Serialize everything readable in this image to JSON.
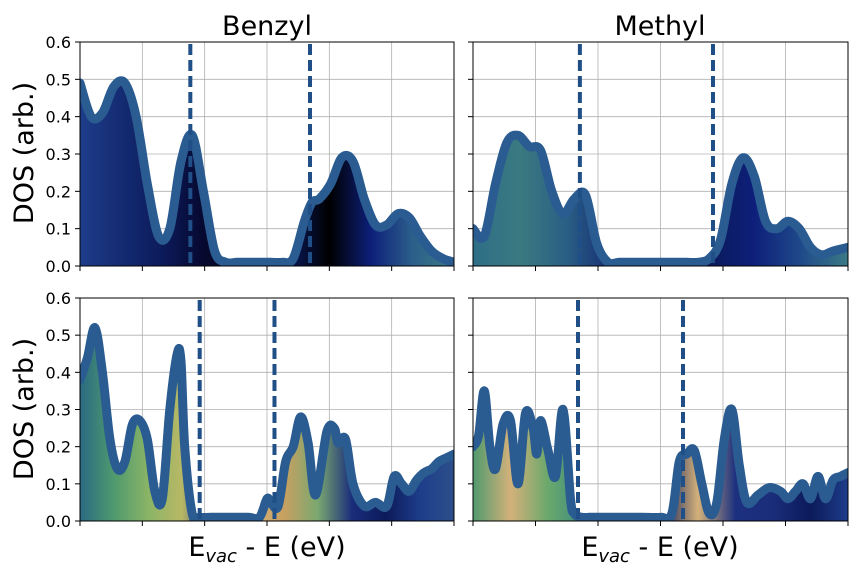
{
  "chart_data": [
    {
      "type": "area",
      "title": "Benzyl",
      "ylabel": "DOS (arb.)",
      "xlabel": "",
      "ylim": [
        0,
        0.6
      ],
      "yticks": [
        "0.0",
        "0.1",
        "0.2",
        "0.3",
        "0.4",
        "0.5",
        "0.6"
      ],
      "x": [
        0,
        0.03,
        0.06,
        0.09,
        0.12,
        0.15,
        0.18,
        0.21,
        0.24,
        0.27,
        0.3,
        0.33,
        0.36,
        0.39,
        0.42,
        0.45,
        0.48,
        0.51,
        0.54,
        0.57,
        0.6,
        0.62,
        0.64,
        0.67,
        0.7,
        0.73,
        0.76,
        0.79,
        0.82,
        0.85,
        0.88,
        0.91,
        0.94,
        0.97,
        1.0
      ],
      "y": [
        0.49,
        0.4,
        0.41,
        0.48,
        0.49,
        0.4,
        0.22,
        0.08,
        0.1,
        0.28,
        0.35,
        0.2,
        0.04,
        0.01,
        0.01,
        0.01,
        0.01,
        0.01,
        0.01,
        0.02,
        0.12,
        0.17,
        0.18,
        0.22,
        0.29,
        0.28,
        0.18,
        0.11,
        0.11,
        0.14,
        0.13,
        0.08,
        0.04,
        0.02,
        0.01
      ],
      "vlines": [
        0.295,
        0.615
      ],
      "fill_colors": [
        "#1e3d8a",
        "#142b72",
        "#0c1a5a",
        "#06082e",
        "#05061c",
        "#0a1a5e",
        "#000000",
        "#0d1f7a",
        "#2c5f8a",
        "#3a7a85"
      ]
    },
    {
      "type": "area",
      "title": "Methyl",
      "ylabel": "",
      "xlabel": "",
      "ylim": [
        0,
        0.6
      ],
      "x": [
        0,
        0.03,
        0.06,
        0.09,
        0.12,
        0.15,
        0.18,
        0.21,
        0.24,
        0.27,
        0.3,
        0.33,
        0.36,
        0.39,
        0.42,
        0.45,
        0.48,
        0.51,
        0.54,
        0.57,
        0.6,
        0.63,
        0.66,
        0.69,
        0.72,
        0.75,
        0.78,
        0.81,
        0.84,
        0.87,
        0.9,
        0.93,
        0.96,
        1.0
      ],
      "y": [
        0.1,
        0.08,
        0.22,
        0.33,
        0.35,
        0.32,
        0.31,
        0.2,
        0.14,
        0.18,
        0.19,
        0.06,
        0.01,
        0.01,
        0.01,
        0.01,
        0.01,
        0.01,
        0.01,
        0.01,
        0.01,
        0.02,
        0.07,
        0.22,
        0.29,
        0.24,
        0.12,
        0.1,
        0.12,
        0.1,
        0.05,
        0.03,
        0.04,
        0.05
      ],
      "vlines": [
        0.285,
        0.64
      ],
      "fill_colors": [
        "#2e6e88",
        "#3a7a80",
        "#2a5f85",
        "#142b72",
        "#05061c",
        "#0c1a5a",
        "#0d1f7a",
        "#1f4a8a",
        "#3a7a85"
      ]
    },
    {
      "type": "area",
      "title": "",
      "ylabel": "DOS (arb.)",
      "xlabel": "E_vac - E (eV)",
      "ylim": [
        0,
        0.6
      ],
      "yticks": [
        "0.0",
        "0.1",
        "0.2",
        "0.3",
        "0.4",
        "0.5",
        "0.6"
      ],
      "x": [
        0,
        0.02,
        0.04,
        0.06,
        0.08,
        0.1,
        0.12,
        0.14,
        0.16,
        0.18,
        0.2,
        0.22,
        0.24,
        0.26,
        0.27,
        0.28,
        0.3,
        0.32,
        0.35,
        0.4,
        0.45,
        0.48,
        0.5,
        0.51,
        0.53,
        0.55,
        0.57,
        0.59,
        0.61,
        0.63,
        0.66,
        0.68,
        0.69,
        0.71,
        0.73,
        0.76,
        0.79,
        0.82,
        0.84,
        0.86,
        0.88,
        0.9,
        0.92,
        0.94,
        0.96,
        0.98,
        1.0
      ],
      "y": [
        0.38,
        0.44,
        0.52,
        0.4,
        0.22,
        0.14,
        0.16,
        0.26,
        0.27,
        0.22,
        0.08,
        0.06,
        0.3,
        0.45,
        0.43,
        0.2,
        0.02,
        0.01,
        0.01,
        0.01,
        0.01,
        0.01,
        0.06,
        0.05,
        0.04,
        0.16,
        0.2,
        0.28,
        0.21,
        0.07,
        0.24,
        0.25,
        0.21,
        0.22,
        0.1,
        0.04,
        0.05,
        0.04,
        0.12,
        0.1,
        0.08,
        0.11,
        0.13,
        0.14,
        0.16,
        0.17,
        0.18
      ],
      "vlines": [
        0.32,
        0.52
      ],
      "fill_colors": [
        "#2a6a82",
        "#4f9a6e",
        "#8ab466",
        "#b8b866",
        "#1c3080",
        "#d4b17a",
        "#c8a060",
        "#7aa870",
        "#1a2d7a",
        "#0c1a5a",
        "#1e3d8a",
        "#2c4f8a"
      ]
    },
    {
      "type": "area",
      "title": "",
      "ylabel": "",
      "xlabel": "E_vac - E (eV)",
      "ylim": [
        0,
        0.6
      ],
      "x": [
        0,
        0.015,
        0.03,
        0.045,
        0.06,
        0.08,
        0.1,
        0.12,
        0.14,
        0.16,
        0.17,
        0.18,
        0.2,
        0.22,
        0.24,
        0.26,
        0.27,
        0.29,
        0.31,
        0.33,
        0.36,
        0.4,
        0.45,
        0.5,
        0.53,
        0.55,
        0.57,
        0.59,
        0.61,
        0.63,
        0.65,
        0.67,
        0.69,
        0.71,
        0.73,
        0.76,
        0.79,
        0.82,
        0.84,
        0.86,
        0.88,
        0.9,
        0.92,
        0.94,
        0.96,
        0.98,
        1.0
      ],
      "y": [
        0.2,
        0.23,
        0.35,
        0.2,
        0.14,
        0.26,
        0.27,
        0.1,
        0.29,
        0.25,
        0.18,
        0.27,
        0.19,
        0.12,
        0.3,
        0.06,
        0.02,
        0.01,
        0.01,
        0.01,
        0.01,
        0.01,
        0.01,
        0.01,
        0.02,
        0.16,
        0.18,
        0.19,
        0.1,
        0.02,
        0.05,
        0.22,
        0.3,
        0.15,
        0.05,
        0.07,
        0.09,
        0.08,
        0.06,
        0.08,
        0.1,
        0.06,
        0.12,
        0.06,
        0.11,
        0.12,
        0.13
      ],
      "vlines": [
        0.28,
        0.56
      ],
      "fill_colors": [
        "#4f9a6e",
        "#d4b17a",
        "#6aa86c",
        "#3a8a80",
        "#aab866",
        "#0c1a5a",
        "#d4b17a",
        "#1c3080",
        "#1a2d7a",
        "#0c1a5a",
        "#1e3d8a"
      ]
    }
  ]
}
